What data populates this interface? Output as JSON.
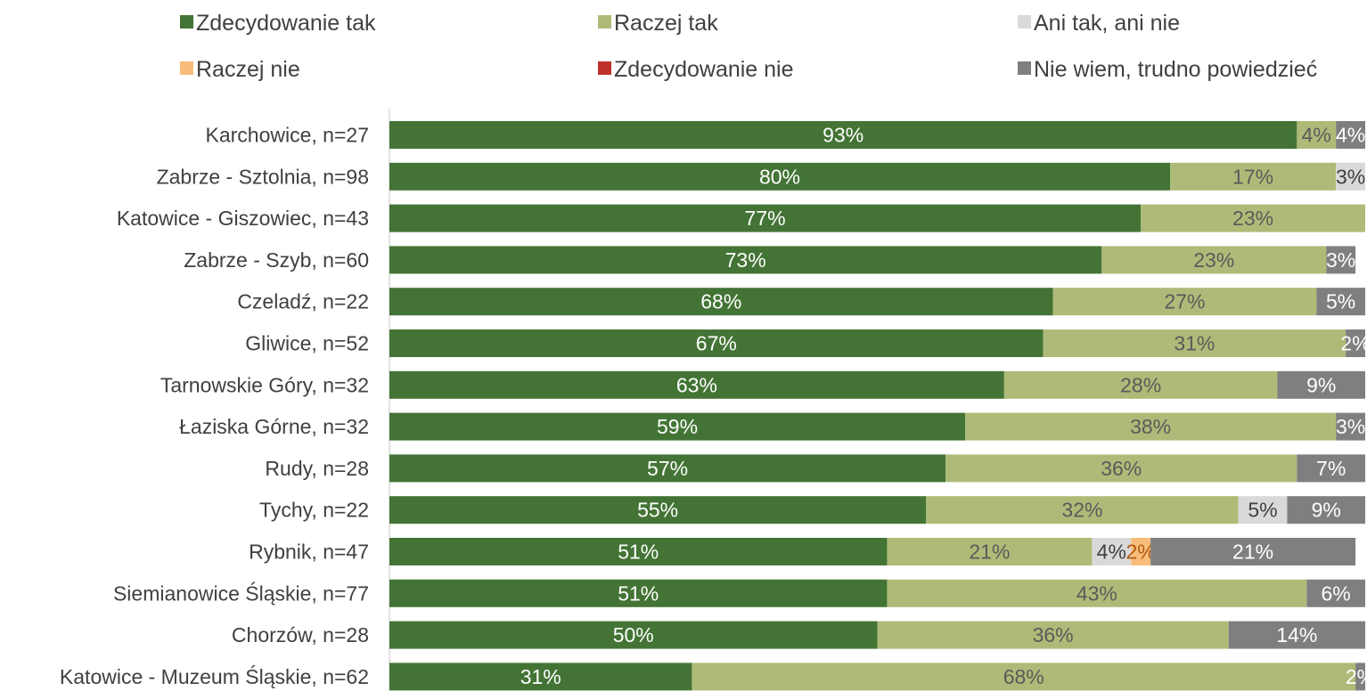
{
  "chart_data": {
    "type": "bar",
    "orientation": "horizontal",
    "stacked": true,
    "grid": false,
    "legend_position": "top",
    "xlim": [
      0,
      100
    ],
    "categories": [
      "Karchowice, n=27",
      "Zabrze - Sztolnia, n=98",
      "Katowice - Giszowiec, n=43",
      "Zabrze - Szyb, n=60",
      "Czeladź, n=22",
      "Gliwice, n=52",
      "Tarnowskie Góry, n=32",
      "Łaziska Górne, n=32",
      "Rudy, n=28",
      "Tychy, n=22",
      "Rybnik, n=47",
      "Siemianowice Śląskie, n=77",
      "Chorzów, n=28",
      "Katowice - Muzeum Śląskie, n=62"
    ],
    "series": [
      {
        "name": "Zdecydowanie tak",
        "color": "#437435",
        "label_color": "#ffffff",
        "values": [
          93,
          80,
          77,
          73,
          68,
          67,
          63,
          59,
          57,
          55,
          51,
          51,
          50,
          31
        ]
      },
      {
        "name": "Raczej tak",
        "color": "#aebb78",
        "label_color": "#5a5a5a",
        "values": [
          4,
          17,
          23,
          23,
          27,
          31,
          28,
          38,
          36,
          32,
          21,
          43,
          36,
          68
        ]
      },
      {
        "name": "Ani tak, ani nie",
        "color": "#d9d9d9",
        "label_color": "#404040",
        "values": [
          0,
          3,
          0,
          0,
          0,
          0,
          0,
          0,
          0,
          5,
          4,
          0,
          0,
          0
        ]
      },
      {
        "name": "Raczej nie",
        "color": "#f8bd7a",
        "label_color": "#b05a10",
        "values": [
          0,
          0,
          0,
          0,
          0,
          0,
          0,
          0,
          0,
          0,
          2,
          0,
          0,
          0
        ]
      },
      {
        "name": "Zdecydowanie nie",
        "color": "#c0302a",
        "label_color": "#ffffff",
        "values": [
          0,
          0,
          0,
          0,
          0,
          0,
          0,
          0,
          0,
          0,
          0,
          0,
          0,
          0
        ]
      },
      {
        "name": "Nie wiem, trudno powiedzieć",
        "color": "#7f7f7f",
        "label_color": "#ffffff",
        "values": [
          4,
          0,
          0,
          3,
          5,
          2,
          9,
          3,
          7,
          9,
          21,
          6,
          14,
          2
        ]
      }
    ]
  }
}
